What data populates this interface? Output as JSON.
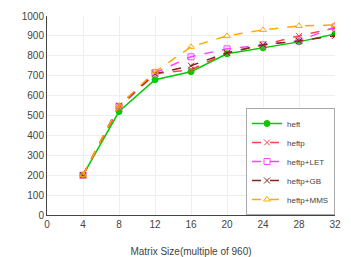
{
  "chart_data": {
    "type": "line",
    "xlabel": "Matrix Size(multiple of 960)",
    "x": [
      4,
      8,
      12,
      16,
      20,
      24,
      28,
      32
    ],
    "series": [
      {
        "name": "heft",
        "color": "#00cc00",
        "line_style": "solid",
        "marker": "circle",
        "values": [
          200,
          520,
          680,
          720,
          810,
          840,
          870,
          910
        ]
      },
      {
        "name": "heftp",
        "color": "#ff4444",
        "line_style": "dash",
        "marker": "x-thin-open",
        "values": [
          200,
          540,
          710,
          730,
          815,
          855,
          900,
          940
        ]
      },
      {
        "name": "heftp+LET",
        "color": "#ff44ff",
        "line_style": "dash",
        "marker": "square-open",
        "values": [
          200,
          545,
          715,
          795,
          835,
          855,
          875,
          945
        ]
      },
      {
        "name": "heftp+GB",
        "color": "#882222",
        "line_style": "dash",
        "marker": "x-thin-open",
        "values": [
          200,
          550,
          710,
          750,
          815,
          855,
          875,
          900
        ]
      },
      {
        "name": "heftp+MMS",
        "color": "#ffaa00",
        "line_style": "dash",
        "marker": "triangle-up-open",
        "values": [
          200,
          550,
          720,
          845,
          900,
          930,
          950,
          955
        ]
      }
    ],
    "xlim": [
      0,
      32
    ],
    "ylim": [
      0,
      1000
    ],
    "xticks": [
      0,
      4,
      8,
      12,
      16,
      20,
      24,
      28,
      32
    ],
    "yticks": [
      0,
      100,
      200,
      300,
      400,
      500,
      600,
      700,
      800,
      900,
      1000
    ],
    "grid": true,
    "legend": "lower right"
  }
}
